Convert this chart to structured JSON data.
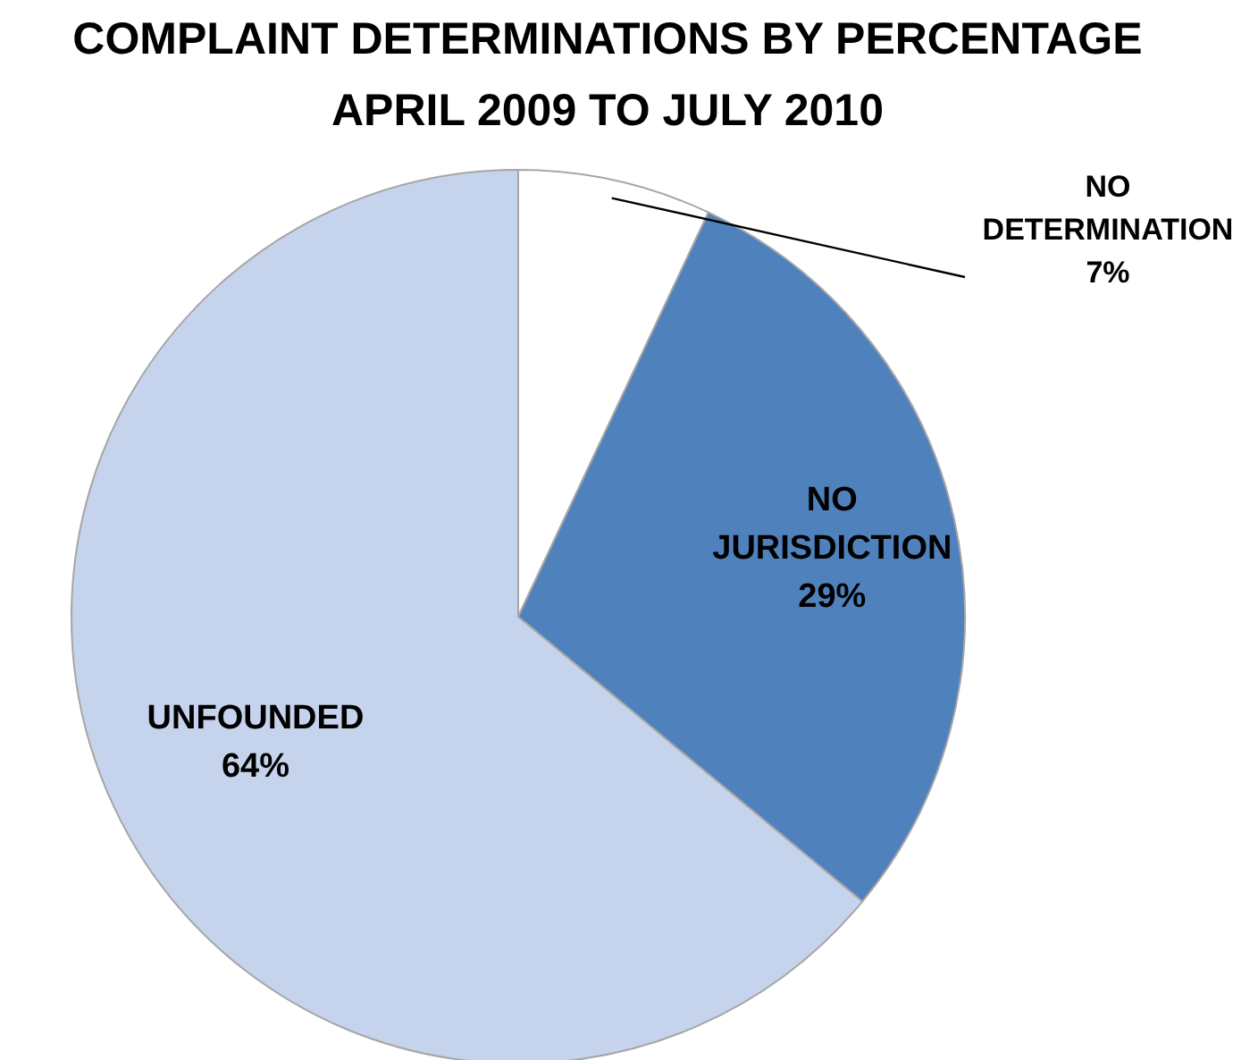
{
  "chart_data": {
    "type": "pie",
    "title": "COMPLAINT DETERMINATIONS BY PERCENTAGE",
    "subtitle": "APRIL 2009 TO JULY 2010",
    "categories": [
      "NO DETERMINATION",
      "NO JURISDICTION",
      "UNFOUNDED"
    ],
    "values": [
      7,
      29,
      64
    ],
    "colors": [
      "#ffffff",
      "#4f81bd",
      "#c5d3ec"
    ],
    "value_labels": [
      "7%",
      "29%",
      "64%"
    ]
  }
}
